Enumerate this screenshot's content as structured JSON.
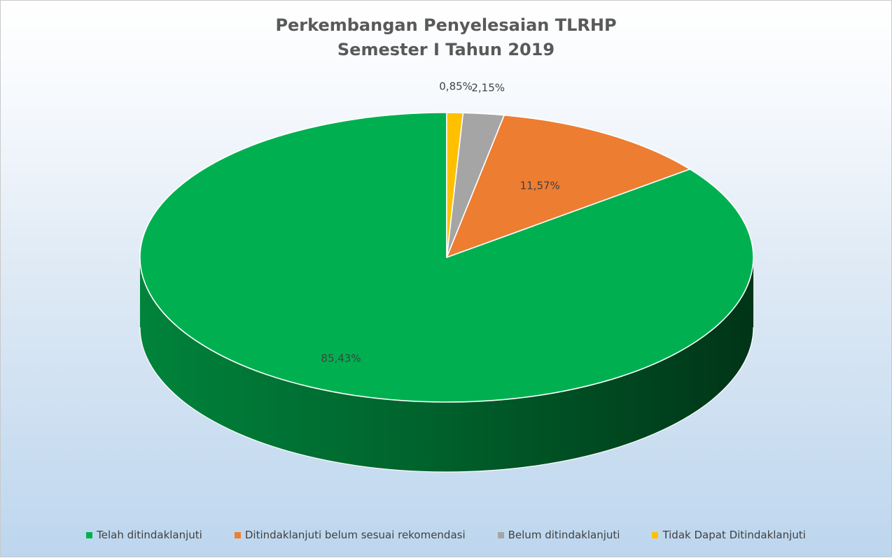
{
  "chart_data": {
    "type": "pie",
    "title_lines": [
      "Perkembangan Penyelesaian TLRHP",
      "Semester I Tahun 2019"
    ],
    "categories": [
      "Telah ditindaklanjuti",
      "Ditindaklanjuti belum sesuai rekomendasi",
      "Belum ditindaklanjuti",
      "Tidak Dapat Ditindaklanjuti"
    ],
    "values": [
      85.43,
      11.57,
      2.15,
      0.85
    ],
    "data_labels": [
      "85,43%",
      "11,57%",
      "2,15%",
      "0,85%"
    ],
    "colors": [
      "#00b050",
      "#ed7d31",
      "#a5a5a5",
      "#ffc000"
    ],
    "side_colors": [
      "#008a3e",
      "#bf5d1f",
      "#7f7f7f",
      "#c79200"
    ],
    "legend_position": "bottom",
    "style": "3d"
  }
}
